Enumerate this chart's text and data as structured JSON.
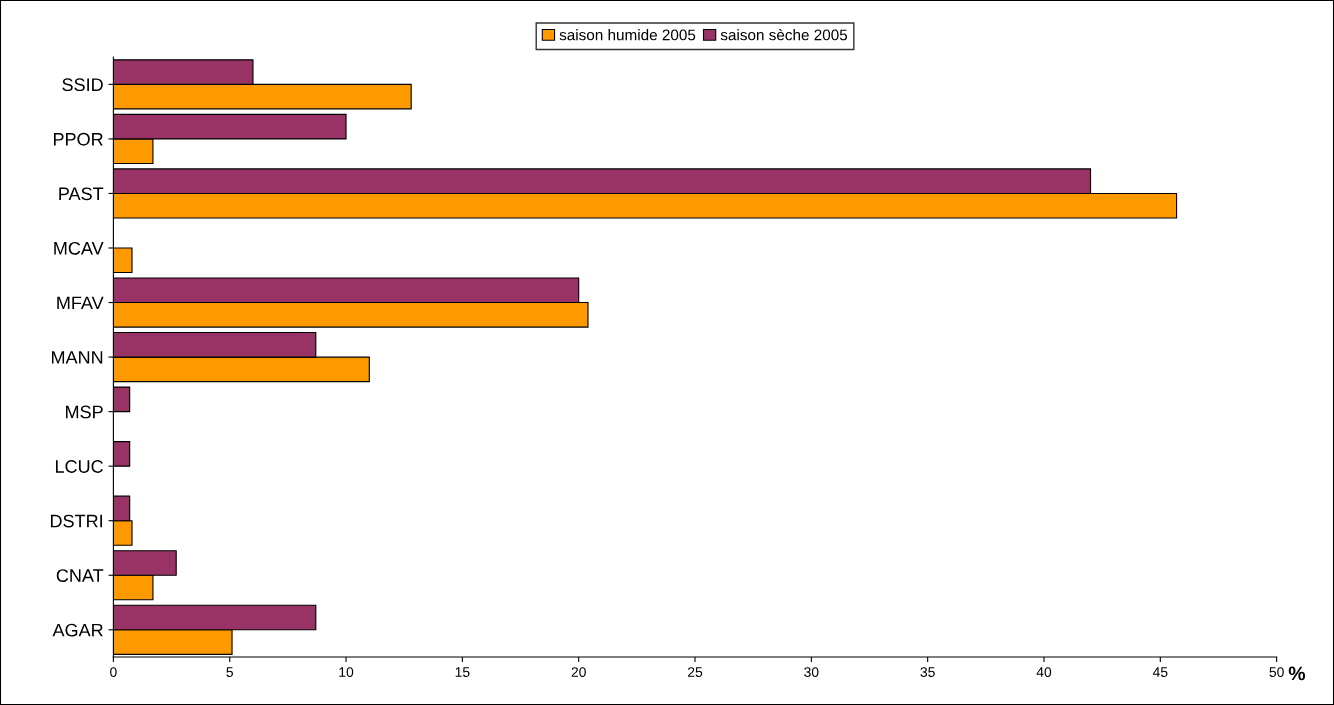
{
  "chart_data": {
    "type": "bar",
    "orientation": "horizontal",
    "xlabel": "%",
    "categories": [
      "SSID",
      "PPOR",
      "PAST",
      "MCAV",
      "MFAV",
      "MANN",
      "MSP",
      "LCUC",
      "DSTRI",
      "CNAT",
      "AGAR"
    ],
    "series": [
      {
        "name": "saison humide 2005",
        "color": "#ff9900",
        "values": [
          12.8,
          1.7,
          45.7,
          0.8,
          20.4,
          11.0,
          0,
          0,
          0.8,
          1.7,
          5.1
        ]
      },
      {
        "name": "saison sèche 2005",
        "color": "#993366",
        "values": [
          6.0,
          10.0,
          42.0,
          0,
          20.0,
          8.7,
          0.7,
          0.7,
          0.7,
          2.7,
          8.7
        ]
      }
    ],
    "xlim": [
      0,
      50
    ],
    "xticks": [
      0,
      5,
      10,
      15,
      20,
      25,
      30,
      35,
      40,
      45,
      50
    ],
    "grid": false,
    "legend": "top"
  }
}
